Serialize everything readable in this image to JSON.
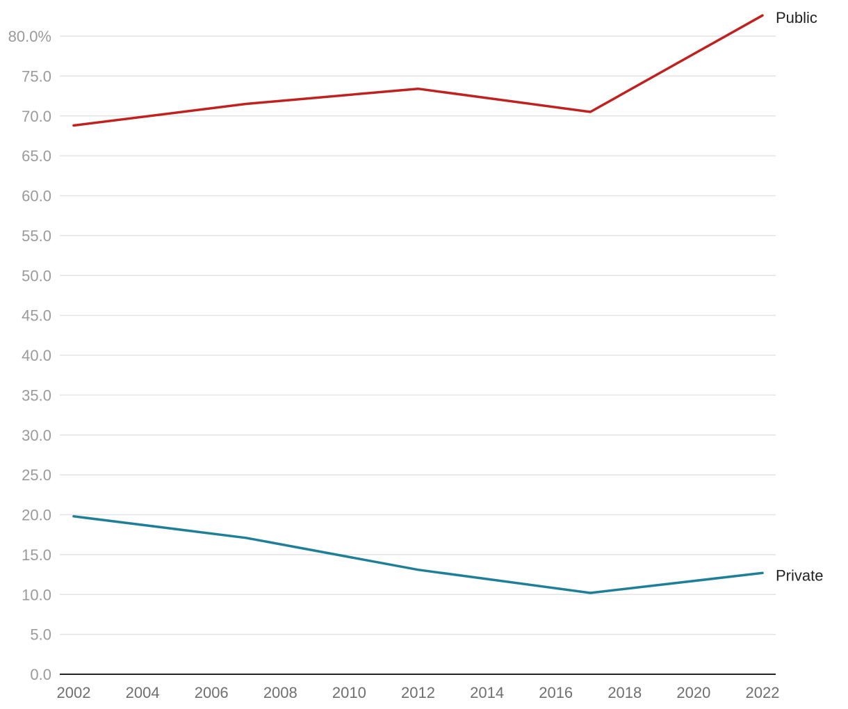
{
  "chart_data": {
    "type": "line",
    "title": "",
    "xlabel": "",
    "ylabel": "",
    "xlim": [
      2002,
      2022
    ],
    "ylim": [
      0,
      80
    ],
    "x_ticks": [
      2002,
      2004,
      2006,
      2008,
      2010,
      2012,
      2014,
      2016,
      2018,
      2020,
      2022
    ],
    "x_tick_labels": [
      "2002",
      "2004",
      "2006",
      "2008",
      "2010",
      "2012",
      "2014",
      "2016",
      "2018",
      "2020",
      "2022"
    ],
    "y_ticks": [
      0,
      5,
      10,
      15,
      20,
      25,
      30,
      35,
      40,
      45,
      50,
      55,
      60,
      65,
      70,
      75,
      80
    ],
    "y_tick_labels": [
      "0.0",
      "5.0",
      "10.0",
      "15.0",
      "20.0",
      "25.0",
      "30.0",
      "35.0",
      "40.0",
      "45.0",
      "50.0",
      "55.0",
      "60.0",
      "65.0",
      "70.0",
      "75.0",
      "80.0%"
    ],
    "grid": true,
    "legend": "direct labels at line ends",
    "series": [
      {
        "name": "Public",
        "color": "#c0211f",
        "x": [
          2002,
          2007,
          2012,
          2017,
          2022
        ],
        "values": [
          68.8,
          71.5,
          73.4,
          70.5,
          82.6
        ]
      },
      {
        "name": "Private",
        "color": "#1f7f99",
        "x": [
          2002,
          2007,
          2012,
          2017,
          2022
        ],
        "values": [
          19.8,
          17.1,
          13.1,
          10.2,
          12.7
        ]
      }
    ]
  }
}
